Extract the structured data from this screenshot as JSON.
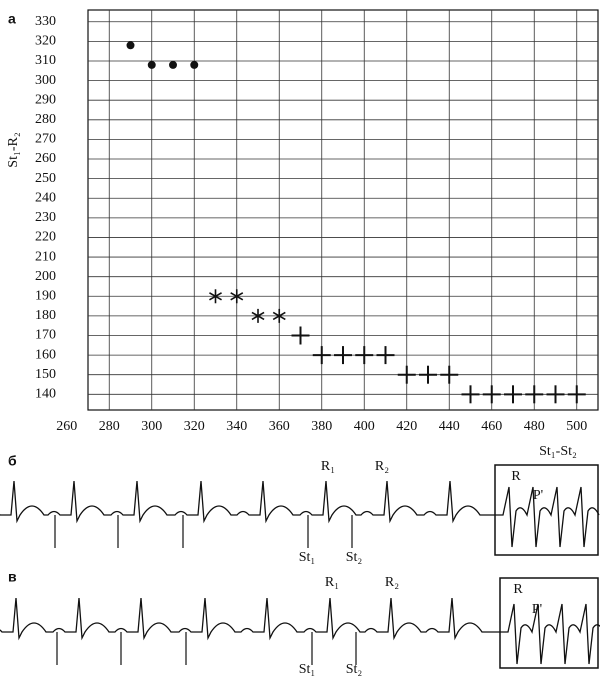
{
  "chart_data": {
    "type": "scatter",
    "panel_label": "а",
    "xlabel": "St₁-St₂",
    "ylabel": "St₁-R₂",
    "xlim": [
      270,
      510
    ],
    "ylim": [
      132,
      336
    ],
    "xticks": [
      260,
      280,
      300,
      320,
      340,
      360,
      380,
      400,
      420,
      440,
      460,
      480,
      500
    ],
    "yticks": [
      140,
      150,
      160,
      170,
      180,
      190,
      200,
      210,
      220,
      230,
      240,
      250,
      260,
      270,
      280,
      290,
      300,
      310,
      320,
      330
    ],
    "grid": true,
    "series": [
      {
        "marker": "circle",
        "color": "#111",
        "x": [
          290,
          300,
          310,
          320
        ],
        "values": [
          318,
          308,
          308,
          308
        ]
      },
      {
        "marker": "asterisk",
        "color": "#111",
        "x": [
          330,
          340,
          350,
          360
        ],
        "values": [
          190,
          190,
          180,
          180
        ]
      },
      {
        "marker": "plus",
        "color": "#111",
        "x": [
          370,
          380,
          390,
          400,
          410,
          420,
          430,
          440,
          450,
          460,
          470,
          480,
          490,
          500
        ],
        "values": [
          170,
          160,
          160,
          160,
          160,
          150,
          150,
          150,
          140,
          140,
          140,
          140,
          140,
          140
        ]
      }
    ]
  },
  "traces": [
    {
      "panel_label": "б",
      "annotations": [
        "R₁",
        "R₂",
        "St₁",
        "St₂",
        "R",
        "P'"
      ]
    },
    {
      "panel_label": "в",
      "annotations": [
        "R₁",
        "R₂",
        "St₁",
        "St₂",
        "R",
        "P'"
      ]
    }
  ]
}
